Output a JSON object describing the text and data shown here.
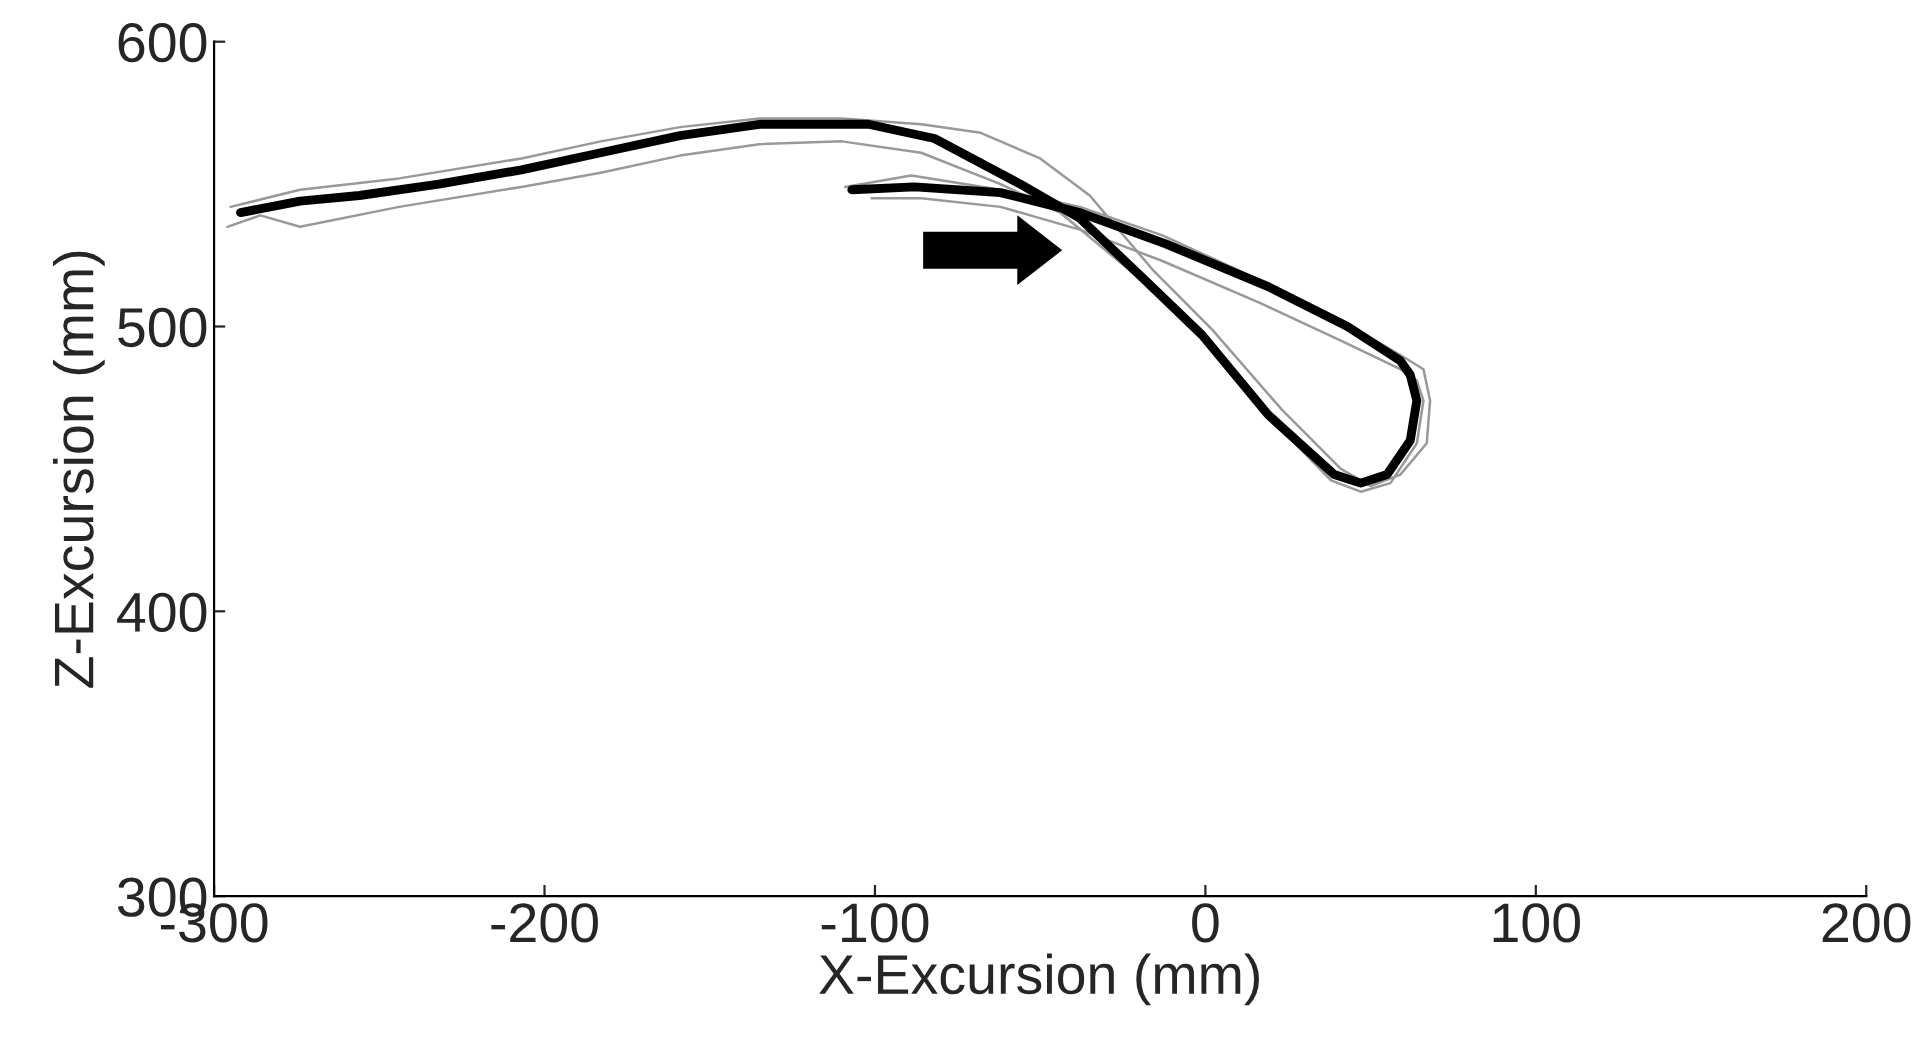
{
  "chart_data": {
    "type": "line",
    "xlabel": "X-Excursion (mm)",
    "ylabel": "Z-Excursion (mm)",
    "xlim": [
      -300,
      200
    ],
    "xticks": [
      -300,
      -200,
      -100,
      0,
      100,
      200
    ],
    "ylim": [
      300,
      600
    ],
    "yticks": [
      300,
      400,
      500,
      600
    ],
    "grid": false,
    "legend": false,
    "marker": "none",
    "line_style": "solid",
    "series": [
      {
        "color": "#999999",
        "x": [
          -295,
          -274,
          -244,
          -207,
          -183,
          -159,
          -135,
          -110,
          -86,
          -68,
          -50,
          -35,
          -16,
          2,
          23,
          41,
          50,
          59,
          67,
          68,
          66,
          59,
          41,
          17,
          -13,
          -38,
          -62,
          -89,
          -109
        ],
        "values": [
          542,
          548,
          552,
          559,
          565,
          570,
          573,
          573,
          571,
          568,
          559,
          546,
          520,
          499,
          471,
          450,
          444,
          448,
          459,
          474,
          485,
          490,
          502,
          516,
          532,
          542,
          548,
          553,
          549
        ]
      },
      {
        "color": "#999999",
        "x": [
          -296,
          -286,
          -274,
          -244,
          -207,
          -183,
          -159,
          -135,
          -110,
          -86,
          -62,
          -44,
          -19,
          -1,
          17,
          38,
          47,
          56,
          64,
          66,
          64,
          59,
          41,
          17,
          -13,
          -38,
          -62,
          -86,
          -101
        ],
        "values": [
          535,
          539,
          535,
          542,
          549,
          554,
          560,
          564,
          565,
          561,
          550,
          540,
          516,
          497,
          471,
          446,
          442,
          445,
          459,
          474,
          481,
          485,
          495,
          508,
          523,
          534,
          542,
          545,
          545
        ]
      },
      {
        "color": "#000000",
        "x": [
          -292,
          -274,
          -256,
          -232,
          -207,
          -183,
          -159,
          -135,
          -110,
          -102,
          -82,
          -56,
          -38,
          -18,
          -1,
          19,
          39,
          47,
          55,
          62,
          64,
          62,
          59,
          43,
          19,
          -12,
          -38,
          -62,
          -88,
          -107
        ],
        "values": [
          540,
          544,
          546,
          550,
          555,
          561,
          567,
          571,
          571,
          571,
          566,
          550,
          538,
          516,
          497,
          469,
          448,
          445,
          448,
          460,
          474,
          483,
          488,
          500,
          514,
          529,
          540,
          547,
          549,
          548
        ]
      }
    ]
  }
}
